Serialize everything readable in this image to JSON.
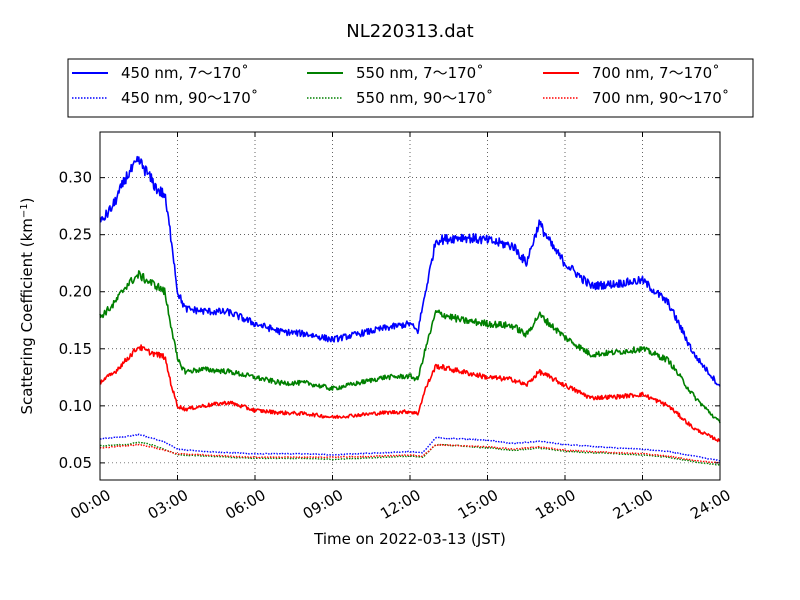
{
  "chart_data": {
    "type": "line",
    "title": "NL220313.dat",
    "xlabel": "Time on 2022-03-13 (JST)",
    "ylabel": "Scattering Coefficient (km",
    "ylabel_unit_exponent": "−1",
    "ylabel_close": ")",
    "xlim": [
      0,
      24
    ],
    "ylim": [
      0.035,
      0.34
    ],
    "x_ticks": [
      0,
      3,
      6,
      9,
      12,
      15,
      18,
      21,
      24
    ],
    "x_tick_labels": [
      "00:00",
      "03:00",
      "06:00",
      "09:00",
      "12:00",
      "15:00",
      "18:00",
      "21:00",
      "24:00"
    ],
    "y_ticks": [
      0.05,
      0.1,
      0.15,
      0.2,
      0.25,
      0.3
    ],
    "y_tick_labels": [
      "0.05",
      "0.10",
      "0.15",
      "0.20",
      "0.25",
      "0.30"
    ],
    "grid": true,
    "legend_placement": "top, above plot",
    "series": [
      {
        "name": "450 nm, 7～170˚",
        "color": "#0000ff",
        "style": "solid",
        "x": [
          0,
          0.5,
          1.0,
          1.5,
          1.8,
          2.2,
          2.5,
          2.8,
          3.0,
          3.3,
          4,
          5,
          6,
          7,
          8,
          9,
          10,
          11,
          12,
          12.3,
          12.6,
          13,
          14,
          15,
          16,
          16.5,
          17,
          17.5,
          18,
          19,
          20,
          21,
          22,
          23,
          24
        ],
        "y": [
          0.26,
          0.275,
          0.3,
          0.315,
          0.305,
          0.29,
          0.285,
          0.24,
          0.2,
          0.185,
          0.183,
          0.182,
          0.172,
          0.165,
          0.163,
          0.158,
          0.163,
          0.168,
          0.172,
          0.165,
          0.2,
          0.245,
          0.248,
          0.245,
          0.24,
          0.225,
          0.26,
          0.24,
          0.225,
          0.205,
          0.207,
          0.21,
          0.19,
          0.145,
          0.117
        ]
      },
      {
        "name": "550 nm, 7～170˚",
        "color": "#008000",
        "style": "solid",
        "x": [
          0,
          0.5,
          1.0,
          1.5,
          1.8,
          2.2,
          2.5,
          2.8,
          3.0,
          3.3,
          4,
          5,
          6,
          7,
          8,
          9,
          10,
          11,
          12,
          12.3,
          12.6,
          13,
          14,
          15,
          16,
          16.5,
          17,
          17.5,
          18,
          19,
          20,
          21,
          22,
          23,
          24
        ],
        "y": [
          0.178,
          0.188,
          0.205,
          0.215,
          0.21,
          0.205,
          0.2,
          0.165,
          0.14,
          0.13,
          0.132,
          0.13,
          0.125,
          0.12,
          0.12,
          0.115,
          0.12,
          0.125,
          0.126,
          0.123,
          0.15,
          0.182,
          0.175,
          0.172,
          0.17,
          0.162,
          0.18,
          0.17,
          0.16,
          0.145,
          0.147,
          0.15,
          0.14,
          0.108,
          0.085
        ]
      },
      {
        "name": "700 nm, 7～170˚",
        "color": "#ff0000",
        "style": "solid",
        "x": [
          0,
          0.5,
          1.0,
          1.5,
          1.8,
          2.2,
          2.5,
          2.8,
          3.0,
          3.3,
          4,
          5,
          6,
          7,
          8,
          9,
          10,
          11,
          12,
          12.3,
          12.6,
          13,
          14,
          15,
          16,
          16.5,
          17,
          17.5,
          18,
          19,
          20,
          21,
          22,
          23,
          24
        ],
        "y": [
          0.121,
          0.128,
          0.14,
          0.152,
          0.148,
          0.145,
          0.143,
          0.115,
          0.1,
          0.097,
          0.1,
          0.103,
          0.096,
          0.094,
          0.093,
          0.09,
          0.092,
          0.094,
          0.095,
          0.093,
          0.115,
          0.135,
          0.13,
          0.125,
          0.123,
          0.118,
          0.13,
          0.124,
          0.118,
          0.107,
          0.108,
          0.11,
          0.1,
          0.08,
          0.069
        ]
      },
      {
        "name": "450 nm, 90～170˚",
        "color": "#0000ff",
        "style": "dotted",
        "x": [
          0,
          1,
          1.5,
          2,
          2.5,
          3,
          4,
          6,
          8,
          9,
          11,
          12,
          12.5,
          13,
          14,
          15,
          16,
          17,
          18,
          20,
          21,
          22,
          23,
          24
        ],
        "y": [
          0.071,
          0.073,
          0.075,
          0.072,
          0.068,
          0.062,
          0.06,
          0.058,
          0.058,
          0.057,
          0.059,
          0.06,
          0.059,
          0.072,
          0.071,
          0.07,
          0.067,
          0.069,
          0.066,
          0.063,
          0.062,
          0.06,
          0.056,
          0.052
        ]
      },
      {
        "name": "550 nm, 90～170˚",
        "color": "#008000",
        "style": "dotted",
        "x": [
          0,
          1,
          1.5,
          2,
          2.5,
          3,
          4,
          6,
          8,
          9,
          11,
          12,
          12.5,
          13,
          14,
          15,
          16,
          17,
          18,
          20,
          21,
          22,
          23,
          24
        ],
        "y": [
          0.065,
          0.066,
          0.068,
          0.066,
          0.062,
          0.057,
          0.056,
          0.054,
          0.054,
          0.053,
          0.055,
          0.056,
          0.055,
          0.066,
          0.065,
          0.063,
          0.061,
          0.063,
          0.06,
          0.058,
          0.057,
          0.055,
          0.051,
          0.048
        ]
      },
      {
        "name": "700 nm, 90～170˚",
        "color": "#ff0000",
        "style": "dotted",
        "x": [
          0,
          1,
          1.5,
          2,
          2.5,
          3,
          4,
          6,
          8,
          9,
          11,
          12,
          12.5,
          13,
          14,
          15,
          16,
          17,
          18,
          20,
          21,
          22,
          23,
          24
        ],
        "y": [
          0.063,
          0.065,
          0.066,
          0.064,
          0.061,
          0.058,
          0.057,
          0.055,
          0.055,
          0.055,
          0.056,
          0.057,
          0.056,
          0.066,
          0.065,
          0.064,
          0.062,
          0.064,
          0.061,
          0.059,
          0.058,
          0.056,
          0.052,
          0.05
        ]
      }
    ],
    "legend_order": [
      0,
      1,
      2,
      3,
      4,
      5
    ]
  }
}
